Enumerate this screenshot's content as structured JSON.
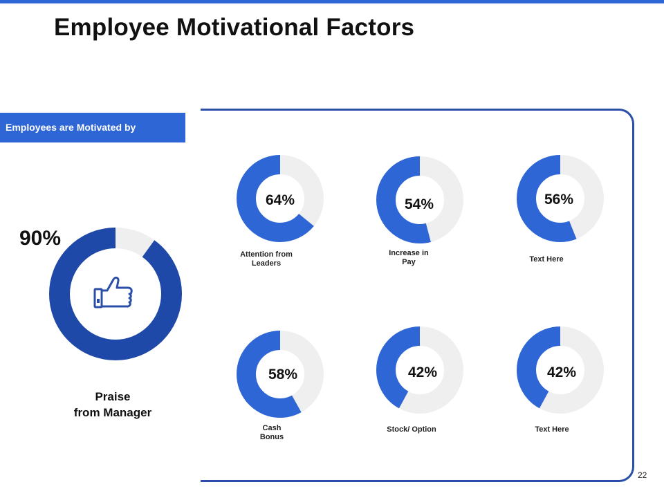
{
  "page": {
    "title": "Employee Motivational Factors",
    "section_label": "Employees are Motivated by",
    "page_number": "22"
  },
  "colors": {
    "accent": "#2f66d6",
    "dark_accent": "#1f49a8",
    "track": "#efefef",
    "border": "#2b4fa8"
  },
  "chart_data": [
    {
      "type": "pie",
      "variant": "donut",
      "value": 90,
      "max": 100,
      "value_label": "90%",
      "label_lines": [
        "Praise",
        "from Manager"
      ],
      "icon": "thumbs-up-icon"
    },
    {
      "type": "pie",
      "variant": "donut-grid",
      "items": [
        {
          "value": 64,
          "value_label": "64%",
          "label_lines": [
            "Attention from",
            "Leaders"
          ]
        },
        {
          "value": 54,
          "value_label": "54%",
          "label_lines": [
            "Increase in",
            "Pay"
          ]
        },
        {
          "value": 56,
          "value_label": "56%",
          "label_lines": [
            "Text Here"
          ]
        },
        {
          "value": 58,
          "value_label": "58%",
          "label_lines": [
            "Cash",
            "Bonus"
          ]
        },
        {
          "value": 42,
          "value_label": "42%",
          "label_lines": [
            "Stock/ Option"
          ]
        },
        {
          "value": 42,
          "value_label": "42%",
          "label_lines": [
            "Text Here"
          ]
        }
      ]
    }
  ]
}
